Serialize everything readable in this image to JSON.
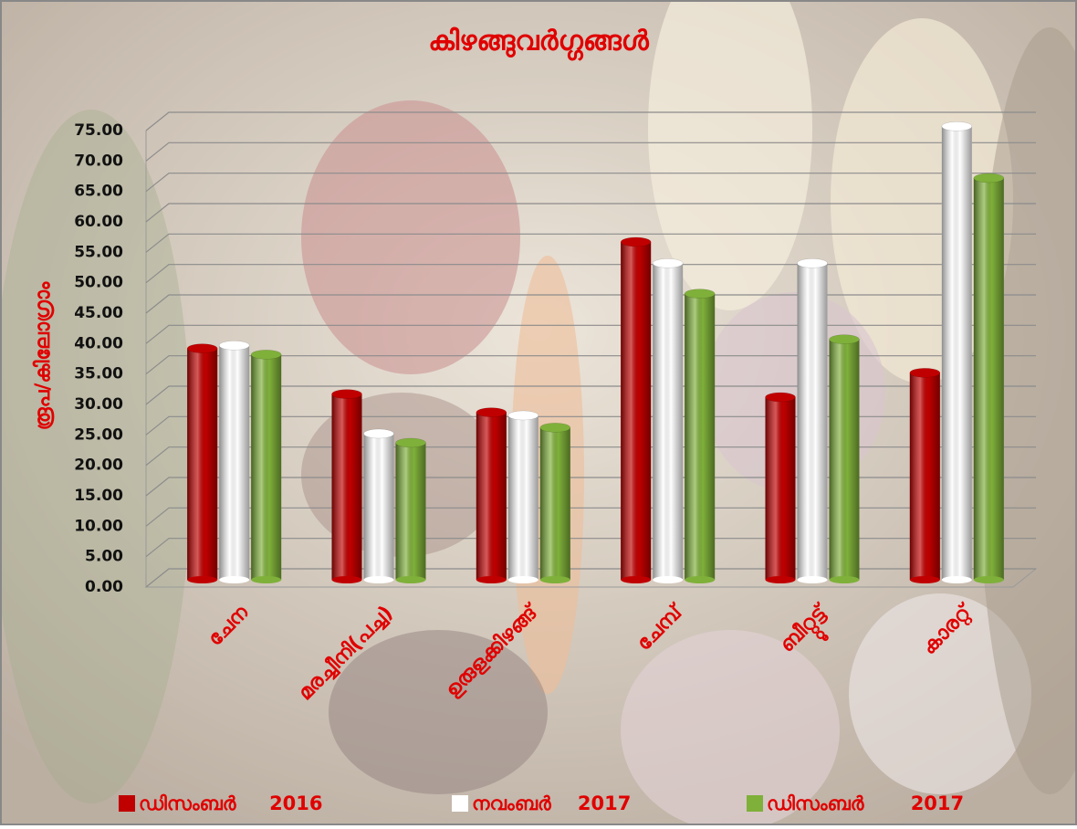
{
  "chart_data": {
    "type": "bar",
    "title": "കിഴങ്ങുവർഗ്ഗങ്ങൾ",
    "y_label": "രൂപ/കിലോഗ്രാം",
    "categories": [
      "ചേന",
      "മരച്ചീനി(പച്ച)",
      "ഉരുളക്കിഴങ്ങ്",
      "ചേമ്പ്",
      "ബീറ്റ്റൂട്ട്",
      "കാരറ്റ്"
    ],
    "series": [
      {
        "name": "ഡിസംബർ     2016",
        "color": "#c00000",
        "values": [
          38,
          30.5,
          27.5,
          55.5,
          30,
          34
        ]
      },
      {
        "name": "നവംബർ    2017",
        "color": "#ffffff",
        "values": [
          38.5,
          24,
          27,
          52,
          52,
          74.5
        ]
      },
      {
        "name": "ഡിസംബർ       2017",
        "color": "#7fb03a",
        "values": [
          37,
          22.5,
          25,
          47,
          39.5,
          66
        ]
      }
    ],
    "ylim": [
      0,
      75
    ],
    "yticks": [
      {
        "value": 0,
        "label": "0.00"
      },
      {
        "value": 5,
        "label": "5.00"
      },
      {
        "value": 10,
        "label": "10.00"
      },
      {
        "value": 15,
        "label": "15.00"
      },
      {
        "value": 20,
        "label": "20.00"
      },
      {
        "value": 25,
        "label": "25.00"
      },
      {
        "value": 30,
        "label": "30.00"
      },
      {
        "value": 35,
        "label": "35.00"
      },
      {
        "value": 40,
        "label": "40.00"
      },
      {
        "value": 45,
        "label": "45.00"
      },
      {
        "value": 50,
        "label": "50.00"
      },
      {
        "value": 55,
        "label": "55.00"
      },
      {
        "value": 60,
        "label": "60.00"
      },
      {
        "value": 65,
        "label": "65.00"
      },
      {
        "value": 70,
        "label": "70.00"
      },
      {
        "value": 75,
        "label": "75.00"
      }
    ],
    "grid": true
  }
}
